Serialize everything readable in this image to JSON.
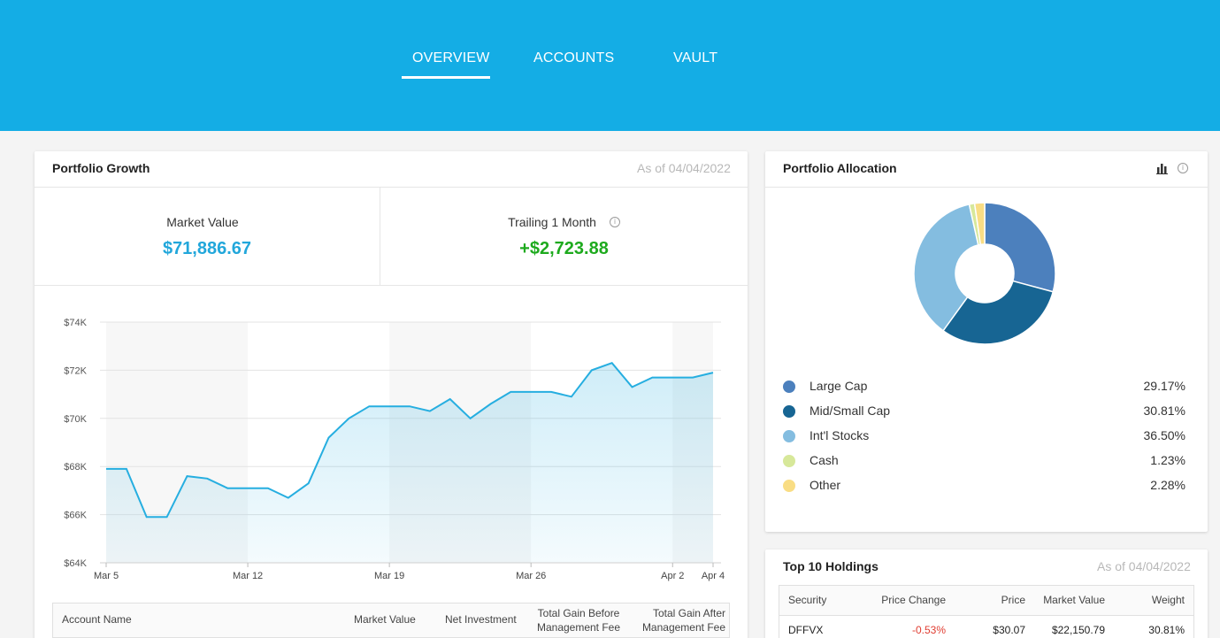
{
  "nav": {
    "tabs": [
      {
        "label": "OVERVIEW",
        "active": true
      },
      {
        "label": "ACCOUNTS",
        "active": false
      },
      {
        "label": "VAULT",
        "active": false
      }
    ]
  },
  "colors": {
    "header": "#14ade5",
    "accent_blue": "#22a7db",
    "positive": "#1eaa1e",
    "negative": "#e03c31"
  },
  "growth": {
    "title": "Portfolio Growth",
    "as_of": "As of 04/04/2022",
    "market_value_label": "Market Value",
    "market_value": "$71,886.67",
    "trailing_label": "Trailing 1 Month",
    "trailing_value": "+$2,723.88",
    "info_icon": "info-icon"
  },
  "chart_data": {
    "type": "area",
    "x": [
      "Mar 5",
      "Mar 6",
      "Mar 7",
      "Mar 8",
      "Mar 9",
      "Mar 10",
      "Mar 11",
      "Mar 12",
      "Mar 13",
      "Mar 14",
      "Mar 15",
      "Mar 16",
      "Mar 17",
      "Mar 18",
      "Mar 19",
      "Mar 20",
      "Mar 21",
      "Mar 22",
      "Mar 23",
      "Mar 24",
      "Mar 25",
      "Mar 26",
      "Mar 27",
      "Mar 28",
      "Mar 29",
      "Mar 30",
      "Mar 31",
      "Apr 1",
      "Apr 2",
      "Apr 3",
      "Apr 4"
    ],
    "series": [
      {
        "values": [
          67900,
          67900,
          65900,
          65900,
          67600,
          67500,
          67100,
          67100,
          67100,
          66700,
          67300,
          69200,
          70000,
          70500,
          70500,
          70500,
          70300,
          70800,
          70000,
          70600,
          71100,
          71100,
          71100,
          70900,
          72000,
          72300,
          71300,
          71700,
          71700,
          71700,
          71900
        ]
      }
    ],
    "ylim": [
      64000,
      74000
    ],
    "yticks": [
      "$64K",
      "$66K",
      "$68K",
      "$70K",
      "$72K",
      "$74K"
    ],
    "ytick_values": [
      64000,
      66000,
      68000,
      70000,
      72000,
      74000
    ],
    "xticks": [
      "Mar 5",
      "Mar 12",
      "Mar 19",
      "Mar 26",
      "Apr 2",
      "Apr 4"
    ],
    "xtick_index": [
      0,
      7,
      14,
      21,
      28,
      30
    ],
    "week_bands": true,
    "grid": true,
    "line_color": "#26aee0"
  },
  "accounts_table": {
    "headers": {
      "name": "Account Name",
      "market_value": "Market Value",
      "net_investment": "Net Investment",
      "gain_before_1": "Total Gain Before",
      "gain_before_2": "Management Fee",
      "gain_after_1": "Total Gain After",
      "gain_after_2": "Management Fee"
    }
  },
  "allocation": {
    "title": "Portfolio Allocation",
    "chart_icon": "bar-chart-icon",
    "info_icon": "info-icon",
    "items": [
      {
        "label": "Large Cap",
        "pct": "29.17%",
        "value": 29.17,
        "color": "#4c80bd"
      },
      {
        "label": "Mid/Small Cap",
        "pct": "30.81%",
        "value": 30.81,
        "color": "#176593"
      },
      {
        "label": "Int'l Stocks",
        "pct": "36.50%",
        "value": 36.5,
        "color": "#84bde0"
      },
      {
        "label": "Cash",
        "pct": "1.23%",
        "value": 1.23,
        "color": "#d7e89a"
      },
      {
        "label": "Other",
        "pct": "2.28%",
        "value": 2.28,
        "color": "#f9dd84"
      }
    ]
  },
  "holdings": {
    "title": "Top 10 Holdings",
    "as_of": "As of 04/04/2022",
    "headers": {
      "security": "Security",
      "price_change": "Price Change",
      "price": "Price",
      "market_value": "Market Value",
      "weight": "Weight"
    },
    "rows": [
      {
        "security": "DFFVX",
        "price_change": "-0.53%",
        "price": "$30.07",
        "market_value": "$22,150.79",
        "weight": "30.81%"
      }
    ]
  }
}
